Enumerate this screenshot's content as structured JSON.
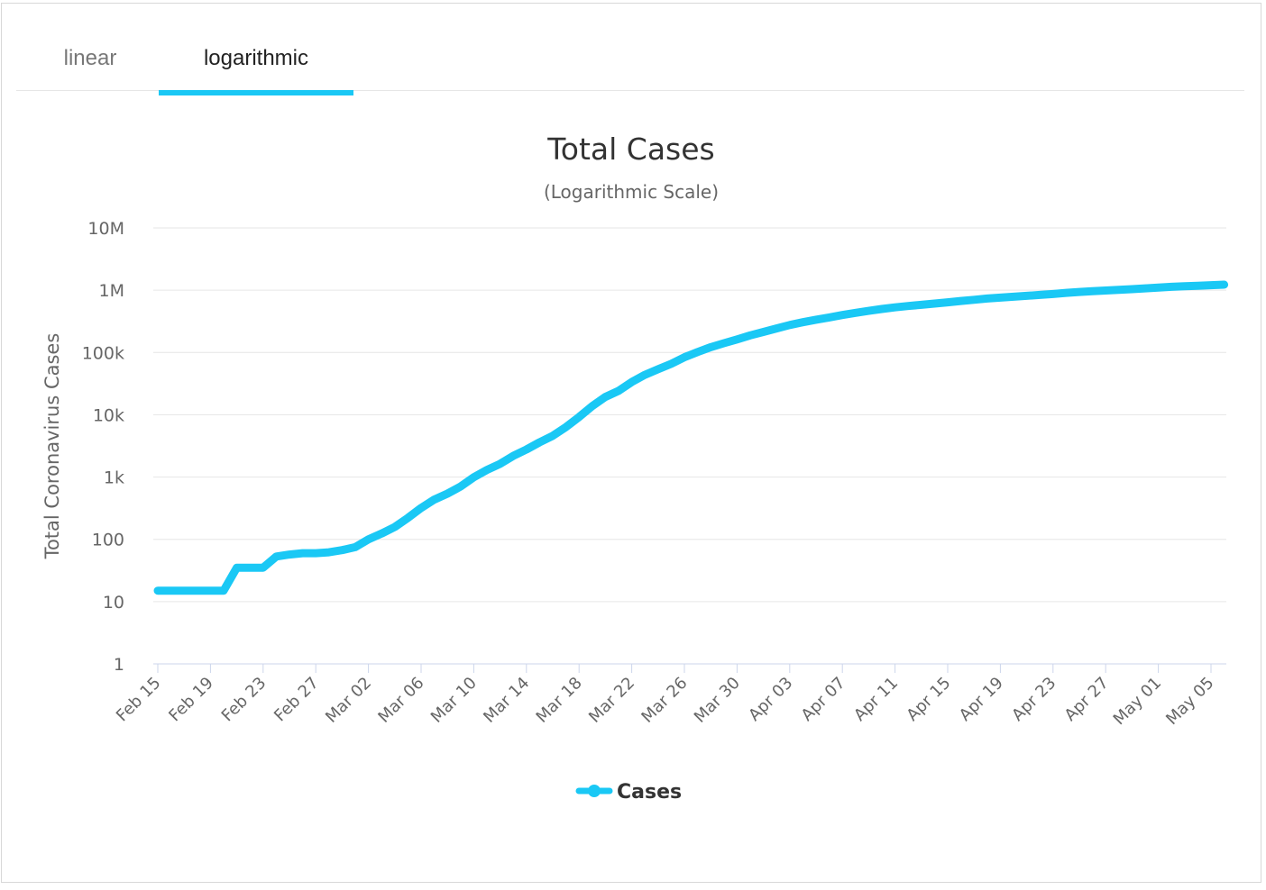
{
  "tabs": [
    {
      "label": "linear",
      "active": false
    },
    {
      "label": "logarithmic",
      "active": true
    }
  ],
  "accent_color": "#1ac8f5",
  "chart_data": {
    "type": "line",
    "title": "Total Cases",
    "subtitle": "(Logarithmic Scale)",
    "ylabel": "Total Coronavirus Cases",
    "xlabel": "",
    "y_scale": "log",
    "ylim": [
      1,
      10000000
    ],
    "y_ticks": [
      {
        "value": 1,
        "label": "1"
      },
      {
        "value": 10,
        "label": "10"
      },
      {
        "value": 100,
        "label": "100"
      },
      {
        "value": 1000,
        "label": "1k"
      },
      {
        "value": 10000,
        "label": "10k"
      },
      {
        "value": 100000,
        "label": "100k"
      },
      {
        "value": 1000000,
        "label": "1M"
      },
      {
        "value": 10000000,
        "label": "10M"
      }
    ],
    "x_ticks": [
      "Feb 15",
      "Feb 19",
      "Feb 23",
      "Feb 27",
      "Mar 02",
      "Mar 06",
      "Mar 10",
      "Mar 14",
      "Mar 18",
      "Mar 22",
      "Mar 26",
      "Mar 30",
      "Apr 03",
      "Apr 07",
      "Apr 11",
      "Apr 15",
      "Apr 19",
      "Apr 23",
      "Apr 27",
      "May 01",
      "May 05"
    ],
    "grid": true,
    "legend_position": "bottom-center",
    "series": [
      {
        "name": "Cases",
        "color": "#1ac8f5",
        "x": [
          "Feb 15",
          "Feb 16",
          "Feb 17",
          "Feb 18",
          "Feb 19",
          "Feb 20",
          "Feb 21",
          "Feb 22",
          "Feb 23",
          "Feb 24",
          "Feb 25",
          "Feb 26",
          "Feb 27",
          "Feb 28",
          "Feb 29",
          "Mar 01",
          "Mar 02",
          "Mar 03",
          "Mar 04",
          "Mar 05",
          "Mar 06",
          "Mar 07",
          "Mar 08",
          "Mar 09",
          "Mar 10",
          "Mar 11",
          "Mar 12",
          "Mar 13",
          "Mar 14",
          "Mar 15",
          "Mar 16",
          "Mar 17",
          "Mar 18",
          "Mar 19",
          "Mar 20",
          "Mar 21",
          "Mar 22",
          "Mar 23",
          "Mar 24",
          "Mar 25",
          "Mar 26",
          "Mar 27",
          "Mar 28",
          "Mar 29",
          "Mar 30",
          "Mar 31",
          "Apr 01",
          "Apr 02",
          "Apr 03",
          "Apr 04",
          "Apr 05",
          "Apr 06",
          "Apr 07",
          "Apr 08",
          "Apr 09",
          "Apr 10",
          "Apr 11",
          "Apr 12",
          "Apr 13",
          "Apr 14",
          "Apr 15",
          "Apr 16",
          "Apr 17",
          "Apr 18",
          "Apr 19",
          "Apr 20",
          "Apr 21",
          "Apr 22",
          "Apr 23",
          "Apr 24",
          "Apr 25",
          "Apr 26",
          "Apr 27",
          "Apr 28",
          "Apr 29",
          "Apr 30",
          "May 01",
          "May 02",
          "May 03",
          "May 04",
          "May 05",
          "May 06"
        ],
        "values": [
          15,
          15,
          15,
          15,
          15,
          15,
          35,
          35,
          35,
          53,
          57,
          60,
          60,
          62,
          67,
          75,
          100,
          124,
          158,
          221,
          319,
          435,
          541,
          704,
          994,
          1301,
          1630,
          2183,
          2770,
          3613,
          4596,
          6344,
          9197,
          13779,
          19383,
          24207,
          33546,
          43734,
          53740,
          65778,
          83836,
          101657,
          121465,
          140909,
          161807,
          188172,
          213372,
          243453,
          275582,
          305820,
          335524,
          364723,
          398809,
          432132,
          466033,
          499252,
          529951,
          557590,
          581679,
          609516,
          639664,
          671331,
          702164,
          735086,
          759086,
          784326,
          811865,
          840351,
          869170,
          905358,
          938154,
          965785,
          988197,
          1012583,
          1039909,
          1069424,
          1103461,
          1133069,
          1158040,
          1180375,
          1204351,
          1228603
        ]
      }
    ]
  }
}
